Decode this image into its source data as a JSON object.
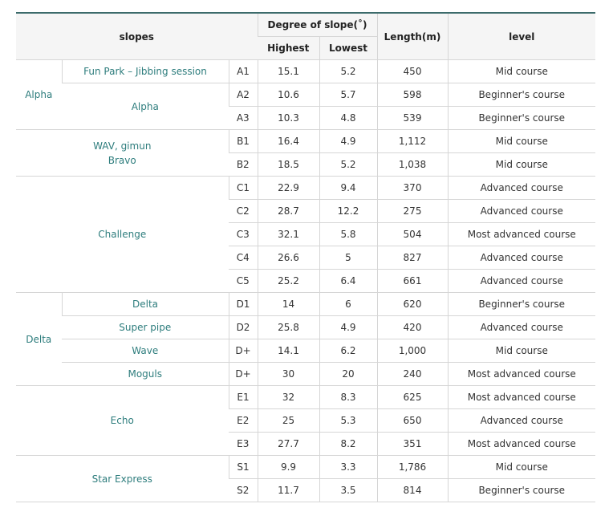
{
  "header": {
    "slopes": "slopes",
    "degree": "Degree of slope(˚)",
    "highest": "Highest",
    "lowest": "Lowest",
    "length": "Length(m)",
    "level": "level"
  },
  "groups": {
    "alpha": "Alpha",
    "delta": "Delta",
    "wav_line1": "WAV, gimun",
    "wav_line2": "Bravo",
    "challenge": "Challenge",
    "echo": "Echo",
    "star": "Star Express"
  },
  "rows": [
    {
      "slope": "Fun Park – Jibbing session",
      "code": "A1",
      "high": "15.1",
      "low": "5.2",
      "length": "450",
      "level": "Mid course"
    },
    {
      "slope": "Alpha",
      "code": "A2",
      "high": "10.6",
      "low": "5.7",
      "length": "598",
      "level": "Beginner's course"
    },
    {
      "slope": "",
      "code": "A3",
      "high": "10.3",
      "low": "4.8",
      "length": "539",
      "level": "Beginner's course"
    },
    {
      "slope": "",
      "code": "B1",
      "high": "16.4",
      "low": "4.9",
      "length": "1,112",
      "level": "Mid course"
    },
    {
      "slope": "",
      "code": "B2",
      "high": "18.5",
      "low": "5.2",
      "length": "1,038",
      "level": "Mid course"
    },
    {
      "slope": "",
      "code": "C1",
      "high": "22.9",
      "low": "9.4",
      "length": "370",
      "level": "Advanced course"
    },
    {
      "slope": "",
      "code": "C2",
      "high": "28.7",
      "low": "12.2",
      "length": "275",
      "level": "Advanced course"
    },
    {
      "slope": "",
      "code": "C3",
      "high": "32.1",
      "low": "5.8",
      "length": "504",
      "level": "Most advanced course"
    },
    {
      "slope": "",
      "code": "C4",
      "high": "26.6",
      "low": "5",
      "length": "827",
      "level": "Advanced course"
    },
    {
      "slope": "",
      "code": "C5",
      "high": "25.2",
      "low": "6.4",
      "length": "661",
      "level": "Advanced course"
    },
    {
      "slope": "Delta",
      "code": "D1",
      "high": "14",
      "low": "6",
      "length": "620",
      "level": "Beginner's course"
    },
    {
      "slope": "Super pipe",
      "code": "D2",
      "high": "25.8",
      "low": "4.9",
      "length": "420",
      "level": "Advanced course"
    },
    {
      "slope": "Wave",
      "code": "D+",
      "high": "14.1",
      "low": "6.2",
      "length": "1,000",
      "level": "Mid course"
    },
    {
      "slope": "Moguls",
      "code": "D+",
      "high": "30",
      "low": "20",
      "length": "240",
      "level": "Most advanced course"
    },
    {
      "slope": "",
      "code": "E1",
      "high": "32",
      "low": "8.3",
      "length": "625",
      "level": "Most advanced course"
    },
    {
      "slope": "",
      "code": "E2",
      "high": "25",
      "low": "5.3",
      "length": "650",
      "level": "Advanced course"
    },
    {
      "slope": "",
      "code": "E3",
      "high": "27.7",
      "low": "8.2",
      "length": "351",
      "level": "Most advanced course"
    },
    {
      "slope": "",
      "code": "S1",
      "high": "9.9",
      "low": "3.3",
      "length": "1,786",
      "level": "Mid course"
    },
    {
      "slope": "",
      "code": "S2",
      "high": "11.7",
      "low": "3.5",
      "length": "814",
      "level": "Beginner's course"
    }
  ]
}
